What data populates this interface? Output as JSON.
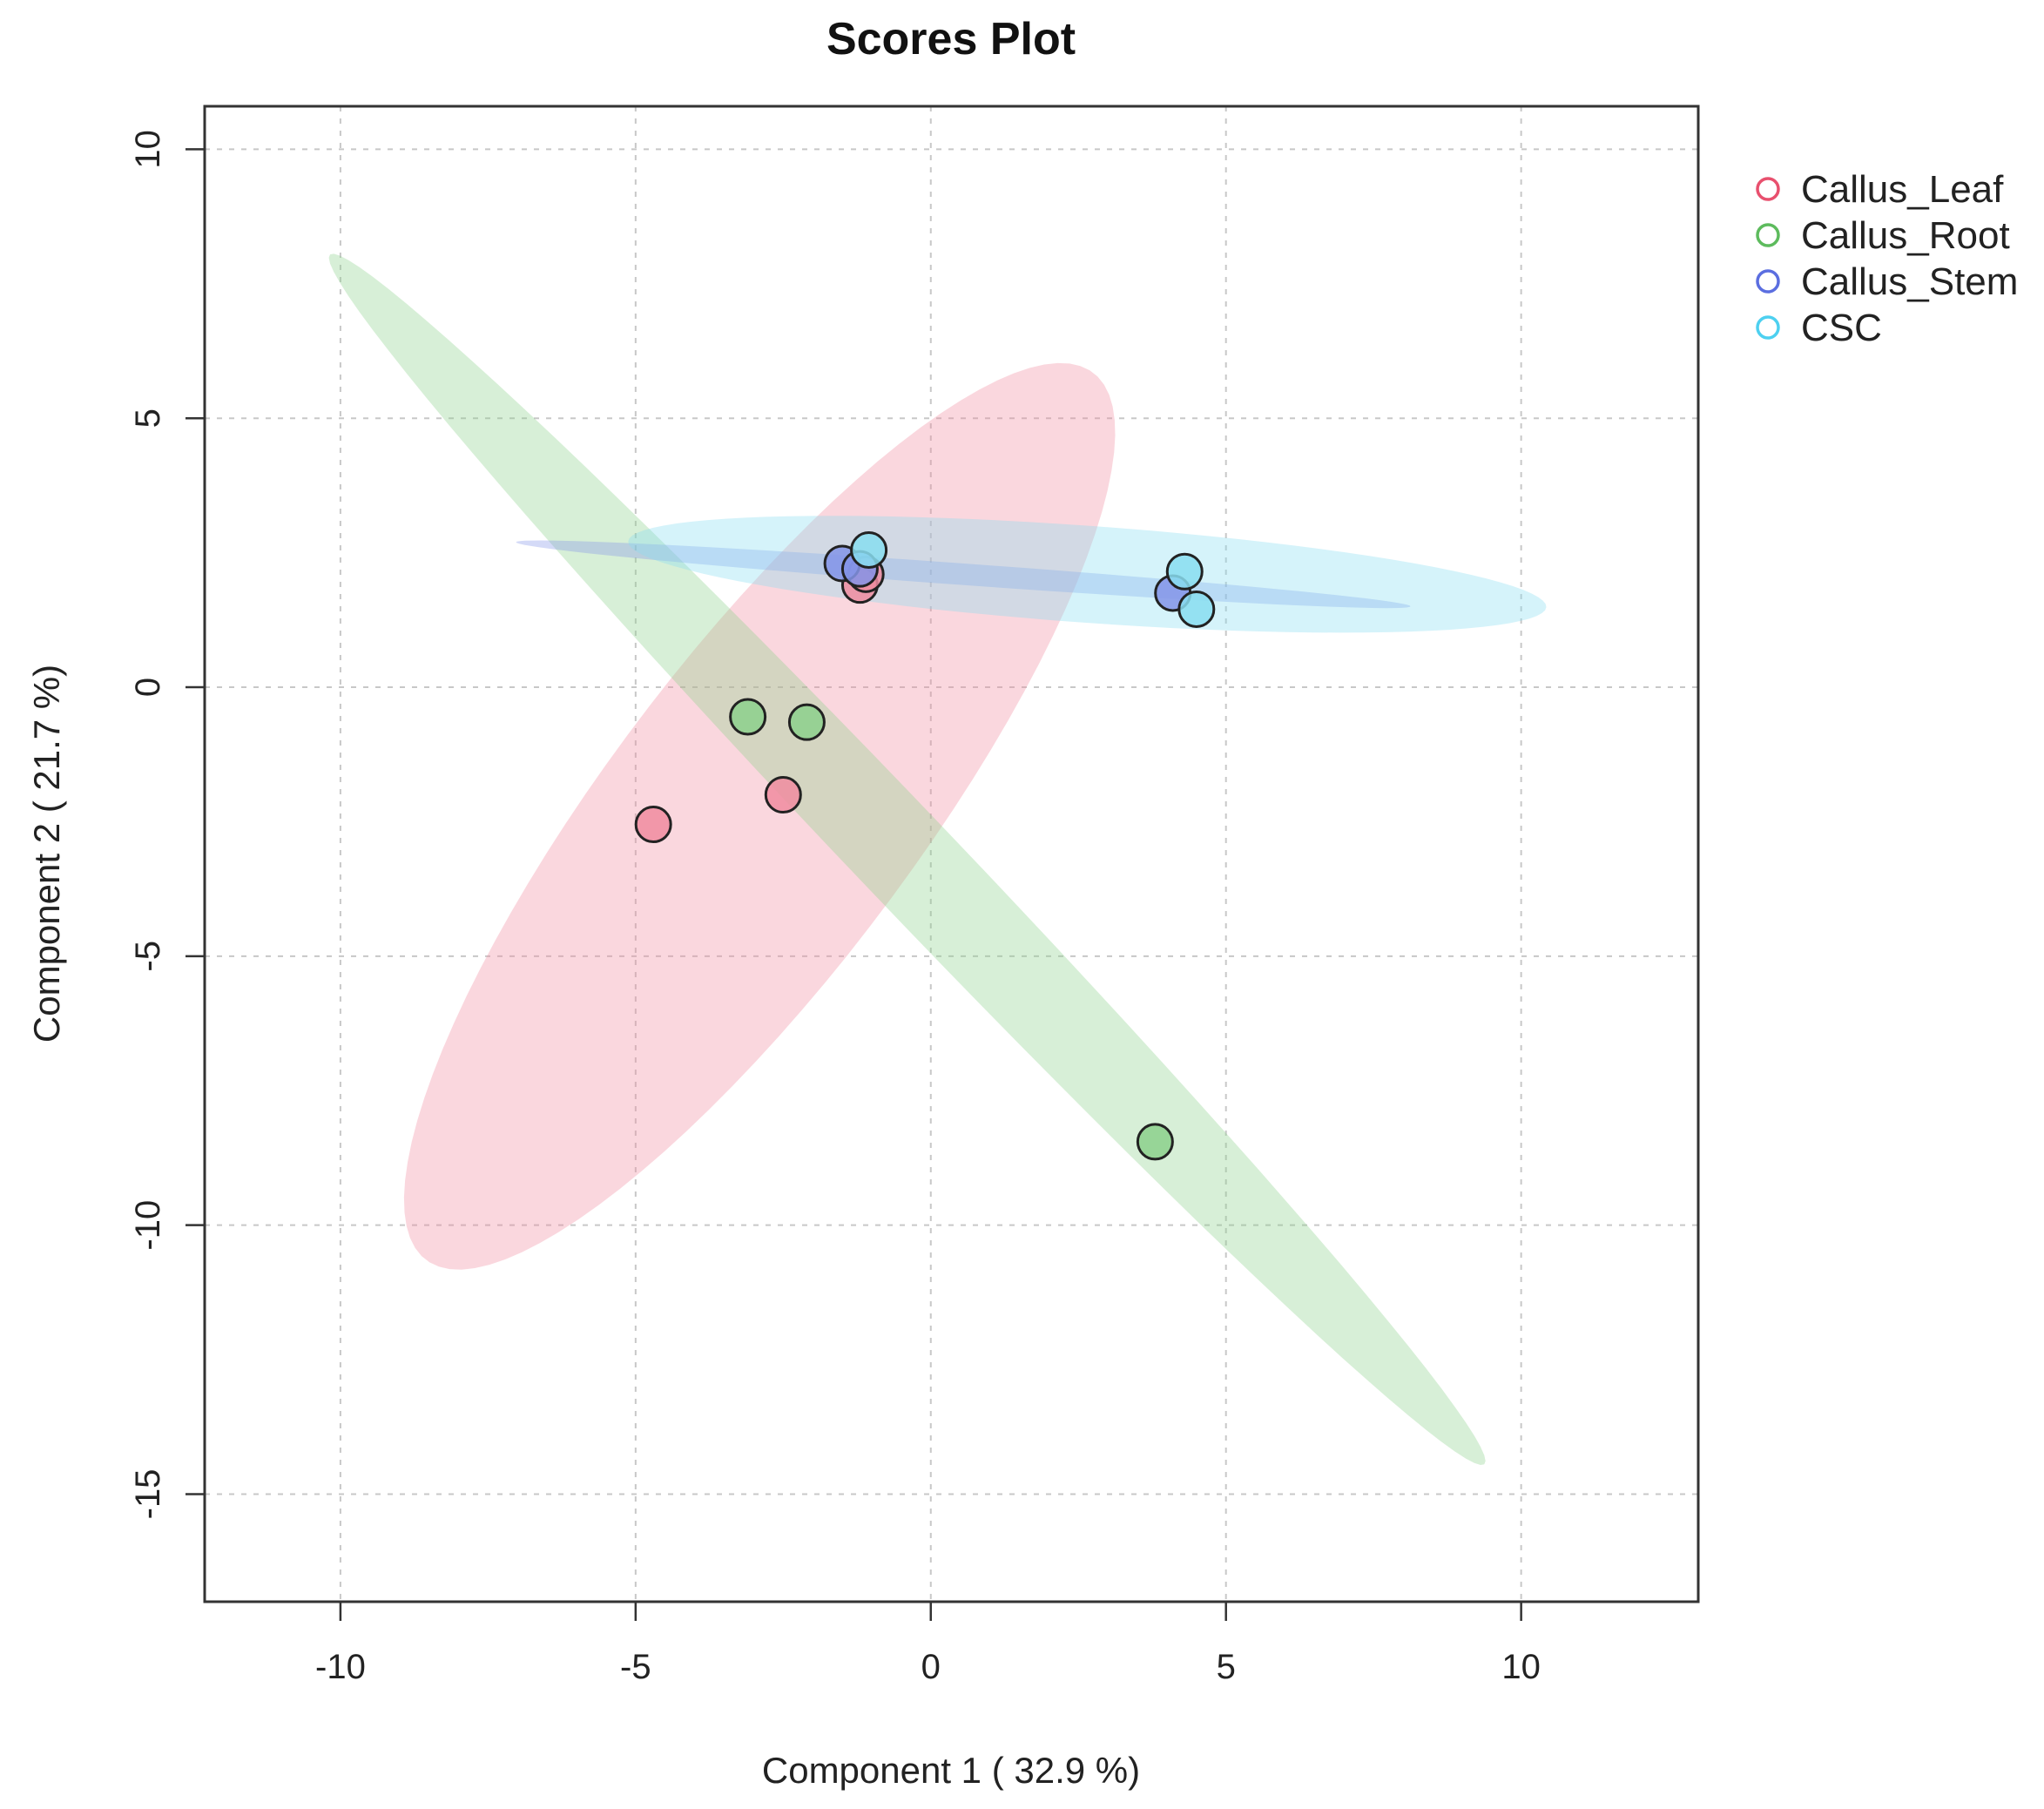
{
  "chart_data": {
    "type": "scatter",
    "title": "Scores Plot",
    "xlabel": "Component 1 ( 32.9 %)",
    "ylabel": "Component 2 ( 21.7 %)",
    "xlim": [
      -12.3,
      13
    ],
    "ylim": [
      -17,
      10.8
    ],
    "xticks": [
      -10,
      -5,
      0,
      5,
      10
    ],
    "xtick_labels": [
      "-10",
      "-5",
      "0",
      "5",
      "10"
    ],
    "yticks": [
      10,
      5,
      0,
      -5,
      -10,
      -15
    ],
    "ytick_labels": [
      "10",
      "5",
      "0",
      "-5",
      "-10",
      "-15"
    ],
    "grid": true,
    "legend_position": "top-right",
    "series": [
      {
        "name": "Callus_Leaf",
        "color": "#E8506E",
        "fill": "#F08CA0",
        "x": [
          -4.7,
          -2.5,
          -1.2,
          -1.1
        ],
        "y": [
          -2.55,
          -2.0,
          1.9,
          2.1
        ],
        "ellipse": {
          "cx": -2.9,
          "cy": -2.4,
          "rx": 10.0,
          "ry": 2.7,
          "angle_deg": 56
        }
      },
      {
        "name": "Callus_Root",
        "color": "#5DBB5D",
        "fill": "#8CD08C",
        "x": [
          -3.1,
          -2.1,
          3.8
        ],
        "y": [
          -0.55,
          -0.65,
          -8.45
        ],
        "ellipse": {
          "cx": -0.4,
          "cy": -3.2,
          "rx": 14.9,
          "ry": 0.85,
          "angle_deg": -49
        }
      },
      {
        "name": "Callus_Stem",
        "color": "#5B6EE0",
        "fill": "#8494E8",
        "x": [
          -1.5,
          -1.2,
          4.1
        ],
        "y": [
          2.3,
          2.2,
          1.75
        ],
        "ellipse": {
          "cx": 0.55,
          "cy": 2.1,
          "rx": 7.6,
          "ry": 0.2,
          "angle_deg": -4.5
        }
      },
      {
        "name": "CSC",
        "color": "#4DD0F0",
        "fill": "#88DDF0",
        "x": [
          -1.05,
          4.3,
          4.5
        ],
        "y": [
          2.55,
          2.15,
          1.45
        ],
        "ellipse": {
          "cx": 2.65,
          "cy": 2.1,
          "rx": 7.8,
          "ry": 0.9,
          "angle_deg": -4.5
        }
      }
    ]
  }
}
